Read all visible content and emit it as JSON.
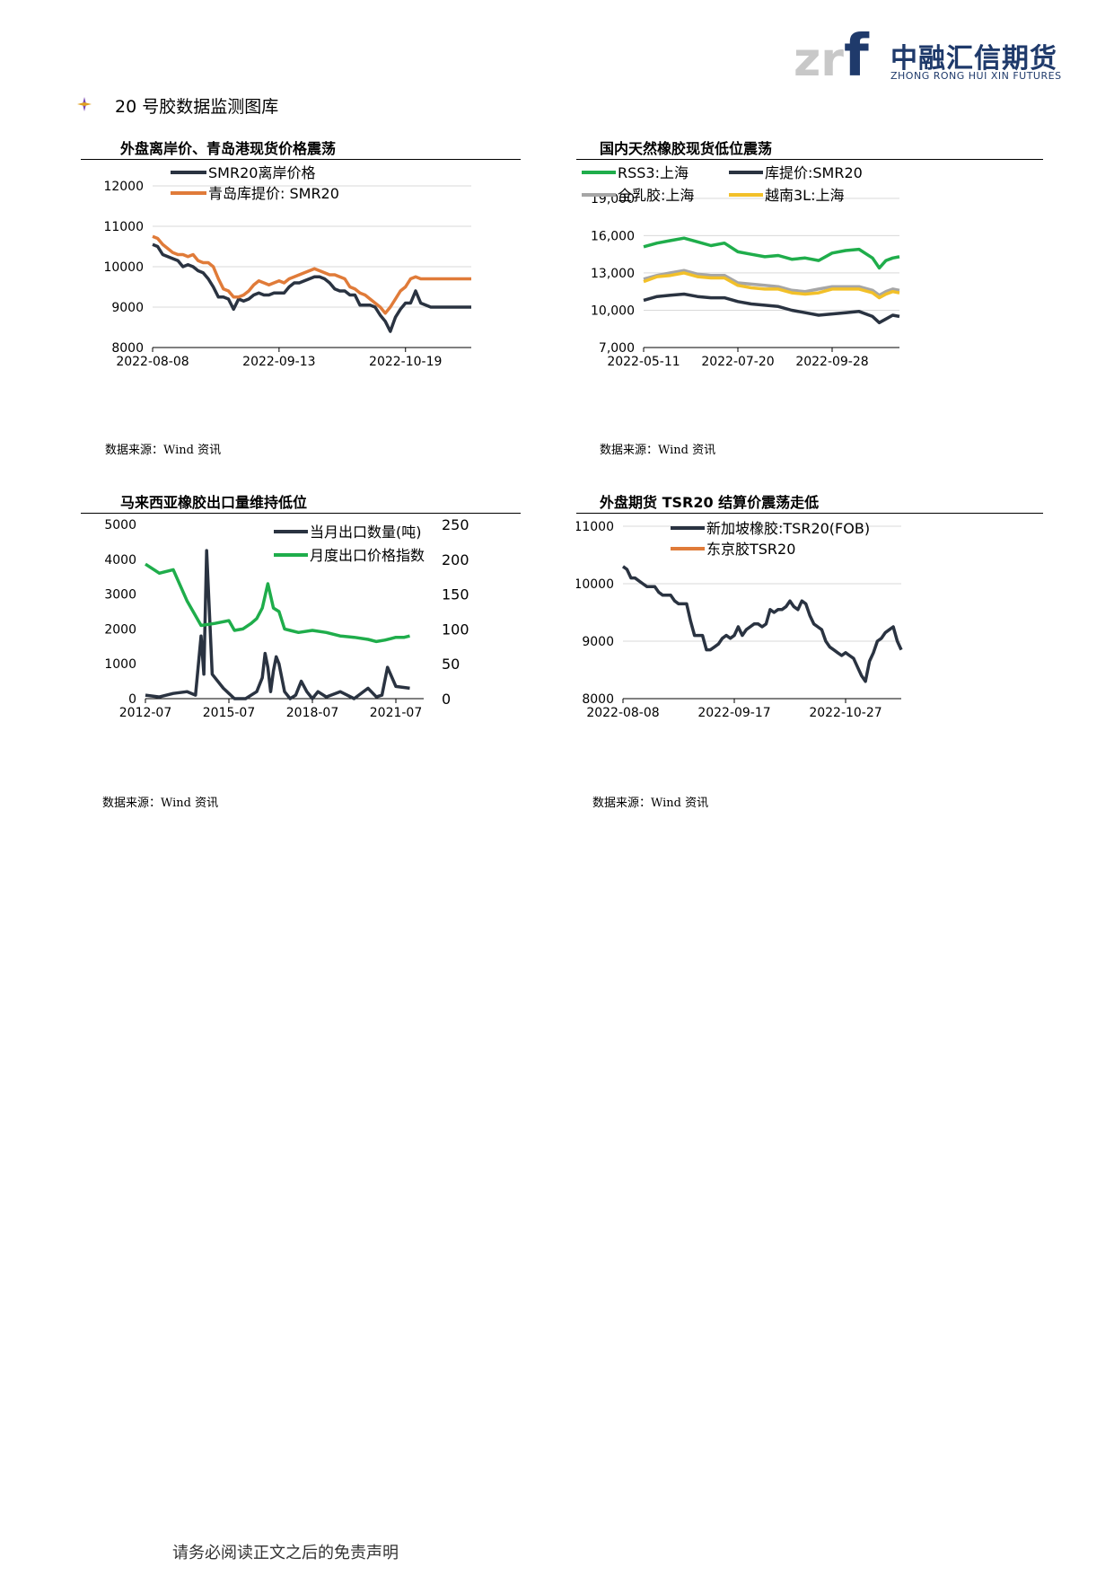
{
  "header": {
    "logo_mark": "zrf",
    "logo_zh": "中融汇信期货",
    "logo_en": "ZHONG RONG HUI XIN FUTURES",
    "colors": {
      "logo_gray": "#c8c8c8",
      "logo_blue": "#1f3a6b"
    }
  },
  "section": {
    "title": "20 号胶数据监测图库",
    "marker_icon": "diamond-bullet-icon"
  },
  "footer": {
    "text": "请务必阅读正文之后的免责声明"
  },
  "chart_data": [
    {
      "type": "line",
      "title": "外盘离岸价、青岛港现货价格震荡",
      "source": "数据来源：Wind 资讯",
      "x_labels": [
        "2022-08-08",
        "2022-09-13",
        "2022-10-19"
      ],
      "x_range": [
        0,
        63
      ],
      "x_ticks": [
        0,
        25,
        50
      ],
      "ylim": [
        8000,
        12000
      ],
      "y_ticks": [
        8000,
        9000,
        10000,
        11000,
        12000
      ],
      "y_tick_labels": [
        "8000",
        "9000",
        "10000",
        "11000",
        "12000"
      ],
      "grid": true,
      "legend": "top-left",
      "series": [
        {
          "name": "SMR20离岸价格",
          "color": "#2a3341",
          "x": [
            0,
            1,
            2,
            3,
            4,
            5,
            6,
            7,
            8,
            9,
            10,
            11,
            12,
            13,
            14,
            15,
            16,
            17,
            18,
            19,
            20,
            21,
            22,
            23,
            24,
            25,
            26,
            27,
            28,
            29,
            30,
            31,
            32,
            33,
            34,
            35,
            36,
            37,
            38,
            39,
            40,
            41,
            42,
            43,
            44,
            45,
            46,
            47,
            48,
            49,
            50,
            51,
            52,
            53,
            54,
            55,
            56,
            57,
            58,
            59,
            60,
            61,
            62,
            63
          ],
          "y": [
            10550,
            10500,
            10300,
            10250,
            10200,
            10150,
            10000,
            10050,
            10000,
            9900,
            9850,
            9700,
            9500,
            9250,
            9250,
            9200,
            8950,
            9200,
            9150,
            9200,
            9300,
            9350,
            9300,
            9300,
            9350,
            9350,
            9350,
            9500,
            9600,
            9600,
            9650,
            9700,
            9750,
            9750,
            9700,
            9600,
            9450,
            9400,
            9400,
            9300,
            9300,
            9050,
            9050,
            9050,
            9000,
            8800,
            8650,
            8400,
            8750,
            8950,
            9100,
            9100,
            9400,
            9100,
            9050,
            9000,
            9000,
            9000,
            9000,
            9000,
            9000,
            9000,
            9000,
            9000
          ]
        },
        {
          "name": "青岛库提价: SMR20",
          "color": "#e07b39",
          "x": [
            0,
            1,
            2,
            3,
            4,
            5,
            6,
            7,
            8,
            9,
            10,
            11,
            12,
            13,
            14,
            15,
            16,
            17,
            18,
            19,
            20,
            21,
            22,
            23,
            24,
            25,
            26,
            27,
            28,
            29,
            30,
            31,
            32,
            33,
            34,
            35,
            36,
            37,
            38,
            39,
            40,
            41,
            42,
            43,
            44,
            45,
            46,
            47,
            48,
            49,
            50,
            51,
            52,
            53,
            54,
            55,
            56,
            57,
            58,
            59,
            60,
            61,
            62,
            63
          ],
          "y": [
            10750,
            10700,
            10550,
            10450,
            10350,
            10300,
            10300,
            10250,
            10300,
            10150,
            10100,
            10100,
            10000,
            9700,
            9450,
            9400,
            9250,
            9250,
            9300,
            9400,
            9550,
            9650,
            9600,
            9550,
            9600,
            9650,
            9600,
            9700,
            9750,
            9800,
            9850,
            9900,
            9950,
            9900,
            9850,
            9800,
            9800,
            9750,
            9700,
            9500,
            9450,
            9350,
            9300,
            9200,
            9100,
            9000,
            8850,
            9000,
            9200,
            9400,
            9500,
            9700,
            9750,
            9700,
            9700,
            9700,
            9700,
            9700,
            9700,
            9700,
            9700,
            9700,
            9700,
            9700
          ]
        }
      ]
    },
    {
      "type": "line",
      "title": "国内天然橡胶现货低位震荡",
      "source": "数据来源：Wind 资讯",
      "x_labels": [
        "2022-05-11",
        "2022-07-20",
        "2022-09-28"
      ],
      "x_range": [
        0,
        190
      ],
      "x_ticks": [
        0,
        70,
        140
      ],
      "ylim": [
        7000,
        20000
      ],
      "y_ticks": [
        7000,
        10000,
        13000,
        16000,
        19000
      ],
      "y_tick_labels": [
        "7,000",
        "10,000",
        "13,000",
        "16,000",
        "19,000"
      ],
      "grid": true,
      "legend": "top",
      "series": [
        {
          "name": "RSS3:上海",
          "color": "#1fad4b",
          "x": [
            0,
            10,
            20,
            30,
            40,
            50,
            60,
            70,
            80,
            90,
            100,
            110,
            120,
            130,
            140,
            150,
            160,
            170,
            175,
            180,
            185,
            190
          ],
          "y": [
            15100,
            15400,
            15600,
            15800,
            15500,
            15200,
            15400,
            14700,
            14500,
            14300,
            14400,
            14100,
            14200,
            14000,
            14600,
            14800,
            14900,
            14200,
            13400,
            14000,
            14200,
            14300
          ]
        },
        {
          "name": "库提价:SMR20",
          "color": "#2a3341",
          "x": [
            0,
            10,
            20,
            30,
            40,
            50,
            60,
            70,
            80,
            90,
            100,
            110,
            120,
            130,
            140,
            150,
            160,
            170,
            175,
            180,
            185,
            190
          ],
          "y": [
            10800,
            11100,
            11200,
            11300,
            11100,
            11000,
            11000,
            10700,
            10500,
            10400,
            10300,
            10000,
            9800,
            9600,
            9700,
            9800,
            9900,
            9500,
            9000,
            9300,
            9600,
            9500
          ]
        },
        {
          "name": "全乳胶:上海",
          "color": "#a6a6a6",
          "x": [
            0,
            10,
            20,
            30,
            40,
            50,
            60,
            70,
            80,
            90,
            100,
            110,
            120,
            130,
            140,
            150,
            160,
            170,
            175,
            180,
            185,
            190
          ],
          "y": [
            12500,
            12800,
            13000,
            13200,
            12900,
            12800,
            12800,
            12200,
            12100,
            12000,
            11900,
            11600,
            11500,
            11700,
            11900,
            11900,
            11900,
            11600,
            11200,
            11500,
            11700,
            11600
          ]
        },
        {
          "name": "越南3L:上海",
          "color": "#f2c029",
          "x": [
            0,
            10,
            20,
            30,
            40,
            50,
            60,
            70,
            80,
            90,
            100,
            110,
            120,
            130,
            140,
            150,
            160,
            170,
            175,
            180,
            185,
            190
          ],
          "y": [
            12300,
            12700,
            12800,
            13000,
            12700,
            12600,
            12600,
            12000,
            11800,
            11700,
            11700,
            11400,
            11300,
            11400,
            11700,
            11700,
            11700,
            11400,
            11000,
            11300,
            11500,
            11400
          ]
        }
      ]
    },
    {
      "type": "line",
      "title": "马来西亚橡胶出口量维持低位",
      "source": "数据来源：Wind 资讯",
      "x_labels": [
        "2012-07",
        "2015-07",
        "2018-07",
        "2021-07"
      ],
      "x_range": [
        0,
        10
      ],
      "x_ticks": [
        0,
        3,
        6,
        9
      ],
      "ylim": [
        0,
        5000
      ],
      "y_ticks": [
        0,
        1000,
        2000,
        3000,
        4000,
        5000
      ],
      "y_tick_labels": [
        "0",
        "1000",
        "2000",
        "3000",
        "4000",
        "5000"
      ],
      "y2lim": [
        0,
        250
      ],
      "y2_ticks": [
        0,
        50,
        100,
        150,
        200,
        250
      ],
      "y2_tick_labels": [
        "0",
        "50",
        "100",
        "150",
        "200",
        "250"
      ],
      "grid": false,
      "legend": "top-right",
      "series": [
        {
          "name": "当月出口数量(吨)",
          "color": "#2a3341",
          "axis": "left",
          "x": [
            0,
            0.5,
            1,
            1.5,
            1.8,
            2.0,
            2.1,
            2.2,
            2.4,
            2.8,
            3.2,
            3.6,
            4.0,
            4.2,
            4.3,
            4.4,
            4.5,
            4.6,
            4.7,
            4.8,
            5.0,
            5.2,
            5.4,
            5.6,
            5.8,
            6.0,
            6.2,
            6.5,
            7.0,
            7.5,
            8.0,
            8.3,
            8.5,
            8.7,
            9.0,
            9.5
          ],
          "y": [
            100,
            50,
            150,
            200,
            100,
            1800,
            700,
            4250,
            700,
            300,
            0,
            0,
            200,
            600,
            1300,
            900,
            200,
            800,
            1200,
            1000,
            200,
            0,
            100,
            500,
            200,
            0,
            200,
            50,
            200,
            0,
            300,
            50,
            100,
            900,
            350,
            300
          ]
        },
        {
          "name": "月度出口价格指数",
          "color": "#1fad4b",
          "axis": "right",
          "x": [
            0,
            0.5,
            1,
            1.5,
            2.0,
            2.5,
            3.0,
            3.2,
            3.5,
            3.8,
            4.0,
            4.2,
            4.4,
            4.6,
            4.8,
            5.0,
            5.2,
            5.5,
            6.0,
            6.5,
            7.0,
            7.5,
            8.0,
            8.3,
            8.6,
            8.8,
            9.0,
            9.3,
            9.5
          ],
          "y": [
            193,
            180,
            185,
            140,
            105,
            108,
            112,
            98,
            100,
            108,
            115,
            130,
            165,
            130,
            125,
            100,
            98,
            95,
            98,
            95,
            90,
            88,
            85,
            82,
            84,
            86,
            88,
            88,
            90
          ]
        }
      ]
    },
    {
      "type": "line",
      "title": "外盘期货 TSR20 结算价震荡走低",
      "source": "数据来源：Wind 资讯",
      "x_labels": [
        "2022-08-08",
        "2022-09-17",
        "2022-10-27"
      ],
      "x_range": [
        0,
        70
      ],
      "x_ticks": [
        0,
        28,
        56
      ],
      "ylim": [
        8000,
        11000
      ],
      "y_ticks": [
        8000,
        9000,
        10000,
        11000
      ],
      "y_tick_labels": [
        "8000",
        "9000",
        "10000",
        "11000"
      ],
      "grid": true,
      "legend": "top-left",
      "series": [
        {
          "name": "新加坡橡胶:TSR20(FOB)",
          "color": "#2a3341",
          "x": [
            0,
            1,
            2,
            3,
            4,
            5,
            6,
            7,
            8,
            9,
            10,
            11,
            12,
            13,
            14,
            15,
            16,
            17,
            18,
            19,
            20,
            21,
            22,
            23,
            24,
            25,
            26,
            27,
            28,
            29,
            30,
            31,
            32,
            33,
            34,
            35,
            36,
            37,
            38,
            39,
            40,
            41,
            42,
            43,
            44,
            45,
            46,
            47,
            48,
            49,
            50,
            51,
            52,
            53,
            54,
            55,
            56,
            57,
            58,
            59,
            60,
            61,
            62,
            63,
            64,
            65,
            66,
            67,
            68,
            69,
            70
          ],
          "y": [
            10300,
            10250,
            10100,
            10100,
            10050,
            10000,
            9950,
            9950,
            9950,
            9850,
            9800,
            9800,
            9800,
            9700,
            9650,
            9650,
            9650,
            9350,
            9100,
            9100,
            9100,
            8850,
            8850,
            8900,
            8950,
            9050,
            9100,
            9050,
            9100,
            9250,
            9100,
            9200,
            9250,
            9300,
            9300,
            9250,
            9300,
            9550,
            9500,
            9550,
            9550,
            9600,
            9700,
            9600,
            9550,
            9700,
            9650,
            9450,
            9300,
            9250,
            9200,
            9000,
            8900,
            8850,
            8800,
            8750,
            8800,
            8750,
            8700,
            8550,
            8400,
            8300,
            8650,
            8800,
            9000,
            9050,
            9150,
            9200,
            9250,
            9000,
            8850
          ]
        },
        {
          "name": "东京胶TSR20",
          "color": "#e07b39",
          "x": [],
          "y": []
        }
      ]
    }
  ]
}
